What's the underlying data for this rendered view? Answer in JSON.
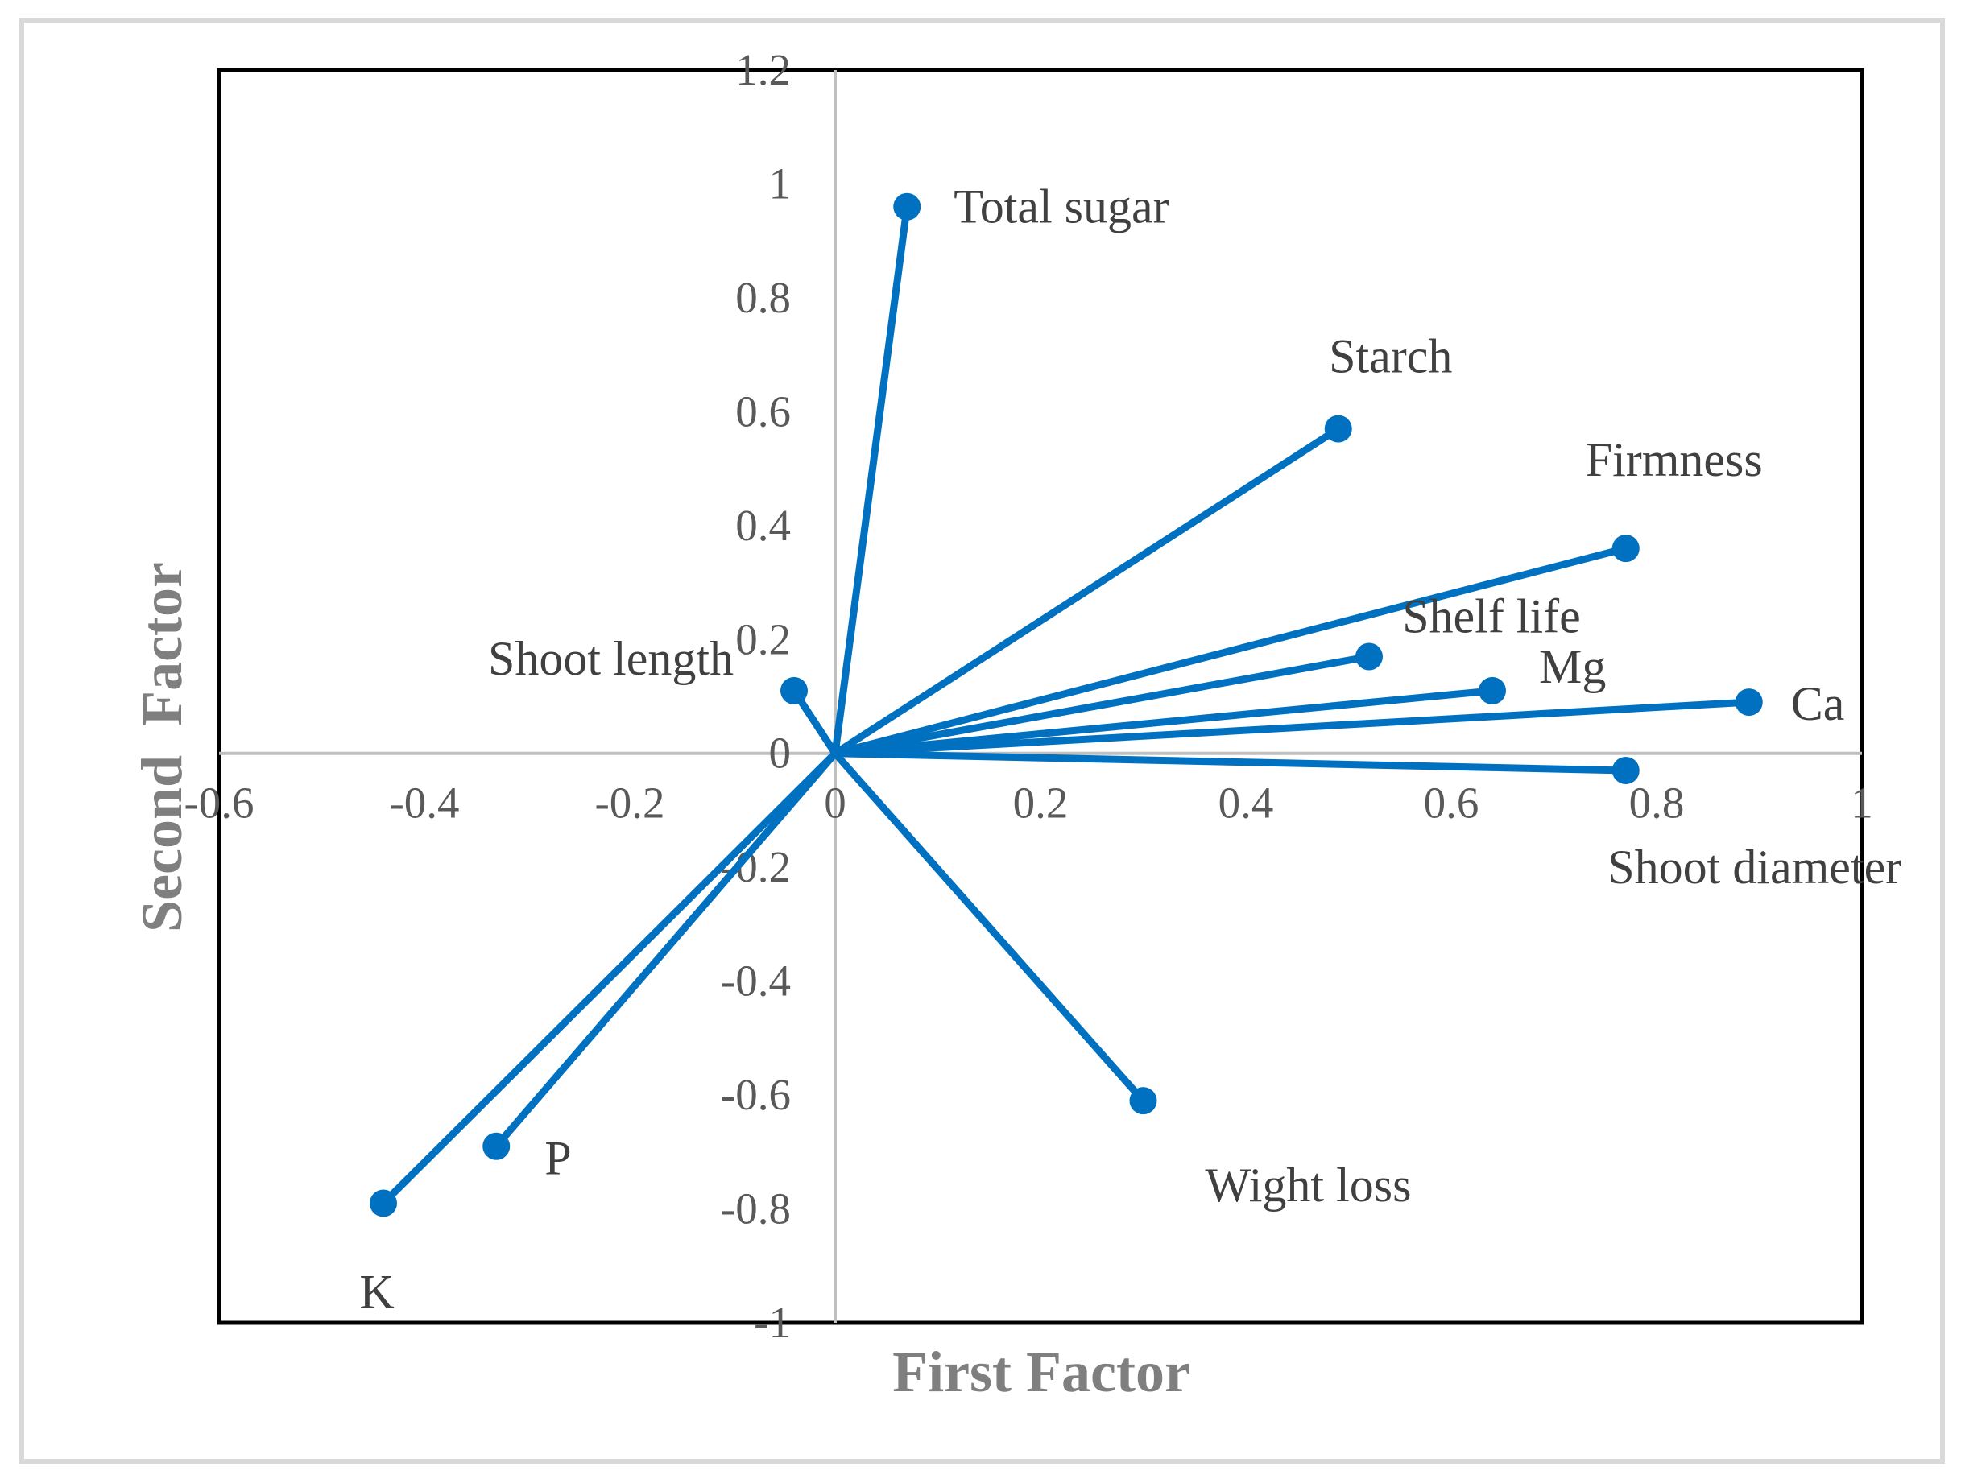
{
  "chart_data": {
    "type": "scatter",
    "title": "",
    "xlabel": "First Factor",
    "ylabel": "Second  Factor",
    "xlim": [
      -0.6,
      1.0
    ],
    "ylim": [
      -1.0,
      1.2
    ],
    "x_ticks": [
      "-0.6",
      "-0.4",
      "-0.2",
      "0",
      "0.2",
      "0.4",
      "0.6",
      "0.8",
      "1"
    ],
    "y_ticks": [
      "-1",
      "-0.8",
      "-0.6",
      "-0.4",
      "-0.2",
      "0",
      "0.2",
      "0.4",
      "0.6",
      "0.8",
      "1",
      "1.2"
    ],
    "grid": false,
    "vectors_from_origin": true,
    "color": "#0070c0",
    "points": [
      {
        "label": "Total sugar",
        "x": 0.07,
        "y": 0.96
      },
      {
        "label": "Starch",
        "x": 0.49,
        "y": 0.57
      },
      {
        "label": "Firmness",
        "x": 0.77,
        "y": 0.36
      },
      {
        "label": "Shelf life",
        "x": 0.52,
        "y": 0.17
      },
      {
        "label": "Mg",
        "x": 0.64,
        "y": 0.11
      },
      {
        "label": "Ca",
        "x": 0.89,
        "y": 0.09
      },
      {
        "label": "Shoot diameter",
        "x": 0.77,
        "y": -0.03
      },
      {
        "label": "Shoot length",
        "x": -0.04,
        "y": 0.11
      },
      {
        "label": "Wight loss",
        "x": 0.3,
        "y": -0.61
      },
      {
        "label": "P",
        "x": -0.33,
        "y": -0.69
      },
      {
        "label": "K",
        "x": -0.44,
        "y": -0.79
      }
    ]
  }
}
